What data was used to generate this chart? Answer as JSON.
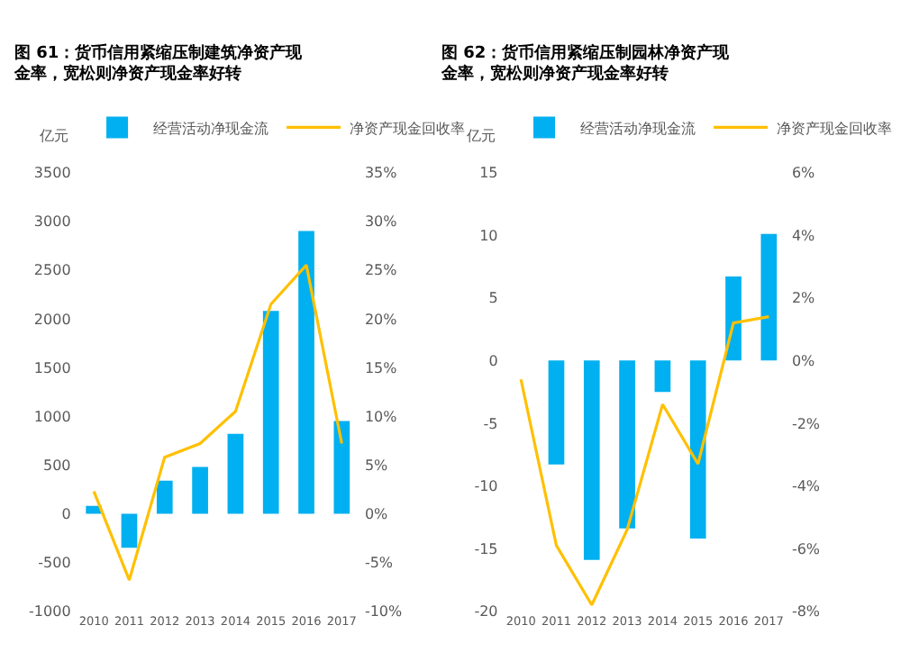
{
  "chart_data": [
    {
      "type": "bar",
      "title": "图 61：货币信用紧缩压制建筑净资产现金率，宽松则净资产现金率好转",
      "ylabel": "亿元",
      "categories": [
        "2010",
        "2011",
        "2012",
        "2013",
        "2014",
        "2015",
        "2016",
        "2017"
      ],
      "series": [
        {
          "name": "经营活动净现金流",
          "color": "#00b0f0",
          "values": [
            80,
            -350,
            340,
            480,
            820,
            2080,
            2900,
            950
          ]
        },
        {
          "name": "净资产现金回收率",
          "type": "line",
          "axis": "y2",
          "color": "#ffc000",
          "values": [
            2.3,
            -6.8,
            5.8,
            7.2,
            10.5,
            21.5,
            25.5,
            7.2
          ]
        }
      ],
      "ylim": [
        -1000,
        3500
      ],
      "yticks": [
        -1000,
        -500,
        0,
        500,
        1000,
        1500,
        2000,
        2500,
        3000,
        3500
      ],
      "y2lim": [
        -10,
        35
      ],
      "y2ticks": [
        {
          "value": -10,
          "label": "-10%"
        },
        {
          "value": -5,
          "label": "-5%"
        },
        {
          "value": 0,
          "label": "0%"
        },
        {
          "value": 5,
          "label": "5%"
        },
        {
          "value": 10,
          "label": "10%"
        },
        {
          "value": 15,
          "label": "15%"
        },
        {
          "value": 20,
          "label": "20%"
        },
        {
          "value": 25,
          "label": "25%"
        },
        {
          "value": 30,
          "label": "30%"
        },
        {
          "value": 35,
          "label": "35%"
        }
      ],
      "legend": "top",
      "grid": false,
      "marker": "none",
      "line_style": "solid"
    },
    {
      "type": "bar",
      "title": "图 62：货币信用紧缩压制园林净资产现金率，宽松则净资产现金率好转",
      "ylabel": "亿元",
      "categories": [
        "2010",
        "2011",
        "2012",
        "2013",
        "2014",
        "2015",
        "2016",
        "2017"
      ],
      "series": [
        {
          "name": "经营活动净现金流",
          "color": "#00b0f0",
          "values": [
            null,
            -8.3,
            -15.9,
            -13.4,
            -2.5,
            -14.2,
            6.7,
            10.1
          ]
        },
        {
          "name": "净资产现金回收率",
          "type": "line",
          "axis": "y2",
          "color": "#ffc000",
          "values": [
            -0.6,
            -5.9,
            -7.8,
            -5.4,
            -1.4,
            -3.3,
            1.2,
            1.4
          ]
        }
      ],
      "ylim": [
        -20,
        15
      ],
      "yticks": [
        -20,
        -15,
        -10,
        -5,
        0,
        5,
        10,
        15
      ],
      "y2lim": [
        -8,
        6
      ],
      "y2ticks": [
        {
          "value": -8,
          "label": "-8%"
        },
        {
          "value": -6,
          "label": "-6%"
        },
        {
          "value": -4,
          "label": "-4%"
        },
        {
          "value": -2,
          "label": "-2%"
        },
        {
          "value": 0,
          "label": "0%"
        },
        {
          "value": 2,
          "label": "2%"
        },
        {
          "value": 4,
          "label": "4%"
        },
        {
          "value": 6,
          "label": "6%"
        }
      ],
      "legend": "top",
      "grid": false,
      "marker": "none",
      "line_style": "solid"
    }
  ]
}
